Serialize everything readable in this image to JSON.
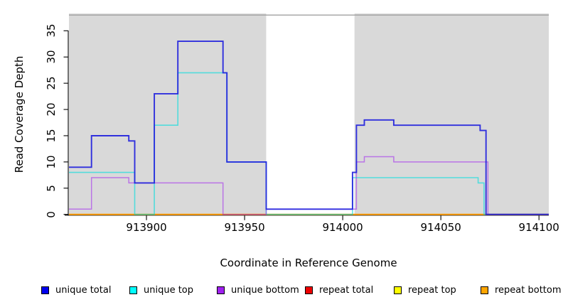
{
  "axes": {
    "y_label": "Read Coverage Depth",
    "x_label": "Coordinate in Reference Genome"
  },
  "legend": [
    {
      "label": "unique total",
      "color": "#0000ee"
    },
    {
      "label": "unique top",
      "color": "#00ffff"
    },
    {
      "label": "unique bottom",
      "color": "#a020f0"
    },
    {
      "label": "repeat total",
      "color": "#ee0000"
    },
    {
      "label": "repeat top",
      "color": "#ffff00"
    },
    {
      "label": "repeat bottom",
      "color": "#ffa500"
    }
  ],
  "chart_data": {
    "type": "line",
    "subtype": "step",
    "title": "",
    "xlabel": "Coordinate in Reference Genome",
    "ylabel": "Read Coverage Depth",
    "xlim": [
      913860.5,
      914105
    ],
    "ylim": [
      0,
      38.3
    ],
    "x_ticks": [
      913900,
      913950,
      914000,
      914050,
      914100
    ],
    "y_ticks": [
      0,
      5,
      10,
      15,
      20,
      25,
      30,
      35
    ],
    "grid": false,
    "legend_position": "bottom",
    "background_regions": [
      {
        "name": "shaded-left",
        "x": [
          913860.5,
          913961
        ],
        "color": "#d9d9d9"
      },
      {
        "name": "gap-white",
        "x": [
          913961,
          914006
        ],
        "color": "#ffffff"
      },
      {
        "name": "shaded-right",
        "x": [
          914006,
          914105
        ],
        "color": "#d9d9d9"
      }
    ],
    "gap_indicator": {
      "y": 38,
      "x": [
        913860.5,
        914105
      ],
      "color": "#a0a0a0"
    },
    "series": [
      {
        "name": "repeat total",
        "color": "#dd0000",
        "opacity": 1,
        "width": 1.5,
        "z": 1,
        "steps": [
          [
            913860.5,
            0
          ],
          [
            914105,
            0
          ]
        ]
      },
      {
        "name": "repeat top",
        "color": "#ffff00",
        "opacity": 1,
        "width": 1.5,
        "z": 2,
        "steps": [
          [
            913860.5,
            0
          ],
          [
            914105,
            0
          ]
        ]
      },
      {
        "name": "repeat bottom",
        "color": "#ff9d00",
        "opacity": 1,
        "width": 2,
        "z": 3,
        "steps": [
          [
            913860.5,
            0
          ],
          [
            914105,
            0
          ]
        ]
      },
      {
        "name": "unique top",
        "color": "#00dddd",
        "opacity": 0.62,
        "width": 1.6,
        "z": 4,
        "steps": [
          [
            913860.5,
            8
          ],
          [
            913894,
            0
          ],
          [
            913904,
            17
          ],
          [
            913916,
            27
          ],
          [
            913941,
            10
          ],
          [
            913961,
            0
          ],
          [
            914005,
            7
          ],
          [
            914069,
            6
          ],
          [
            914072,
            0
          ],
          [
            914105,
            0
          ]
        ]
      },
      {
        "name": "unique bottom",
        "color": "#a020f0",
        "opacity": 0.55,
        "width": 1.5,
        "z": 5,
        "steps": [
          [
            913860.5,
            1
          ],
          [
            913872,
            7
          ],
          [
            913891,
            6
          ],
          [
            913939,
            0
          ],
          [
            913961,
            1
          ],
          [
            914007,
            10
          ],
          [
            914011,
            11
          ],
          [
            914026,
            10
          ],
          [
            914074,
            0
          ],
          [
            914105,
            0
          ]
        ]
      },
      {
        "name": "unique total",
        "color": "#2222dd",
        "opacity": 0.92,
        "width": 1.9,
        "z": 6,
        "steps": [
          [
            913860.5,
            9
          ],
          [
            913872,
            15
          ],
          [
            913891,
            14
          ],
          [
            913894,
            6
          ],
          [
            913904,
            23
          ],
          [
            913916,
            33
          ],
          [
            913939,
            27
          ],
          [
            913941,
            10
          ],
          [
            913961,
            1
          ],
          [
            914005,
            8
          ],
          [
            914007,
            17
          ],
          [
            914011,
            18
          ],
          [
            914026,
            17
          ],
          [
            914070,
            16
          ],
          [
            914073,
            0
          ],
          [
            914105,
            0
          ]
        ]
      }
    ]
  }
}
